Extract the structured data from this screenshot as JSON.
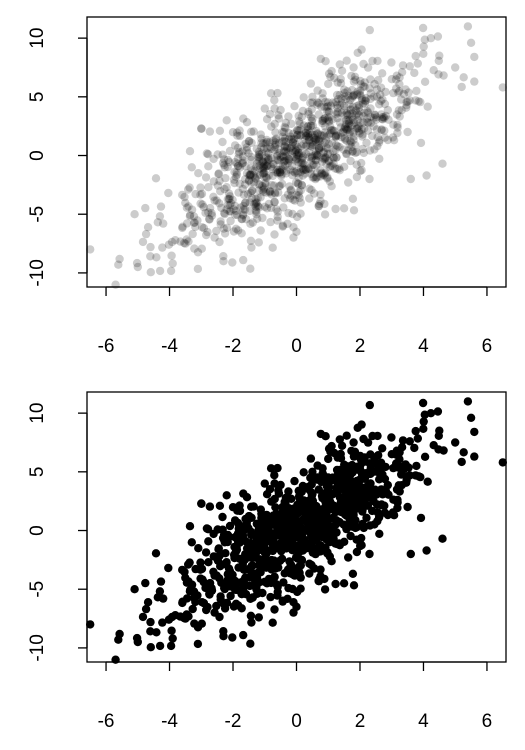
{
  "chart_data": [
    {
      "type": "scatter",
      "title": "",
      "xlabel": "",
      "ylabel": "",
      "xlim": [
        -6.6,
        6.6
      ],
      "ylim": [
        -11.2,
        11.8
      ],
      "xticks": [
        -6,
        -4,
        -2,
        0,
        2,
        4,
        6
      ],
      "yticks": [
        -10,
        -5,
        0,
        5,
        10
      ],
      "xtick_labels": [
        "-6",
        "-4",
        "-2",
        "0",
        "2",
        "4",
        "6"
      ],
      "ytick_labels": [
        "-10",
        "-5",
        "0",
        "5",
        "10"
      ],
      "grid": false,
      "marker": "filled circle",
      "point_color": "#000000",
      "point_alpha": 0.2,
      "n_points": 1000,
      "correlation": 0.75,
      "series": [
        {
          "label_points": [
            {
              "x": -6.5,
              "y": -8.0
            },
            {
              "x": -5.7,
              "y": -11.0
            },
            {
              "x": -5.1,
              "y": -5.0
            },
            {
              "x": -5.0,
              "y": -9.5
            },
            {
              "x": -4.6,
              "y": -7.8
            },
            {
              "x": -4.2,
              "y": -5.8
            },
            {
              "x": -3.9,
              "y": -9.2
            },
            {
              "x": -3.5,
              "y": -7.5
            },
            {
              "x": -3.3,
              "y": -1.0
            },
            {
              "x": -3.0,
              "y": 2.3
            },
            {
              "x": -2.3,
              "y": -9.0
            },
            {
              "x": -2.2,
              "y": 3.0
            },
            {
              "x": -1.0,
              "y": 4.0
            },
            {
              "x": -0.8,
              "y": 5.3
            },
            {
              "x": 0.0,
              "y": -6.5
            },
            {
              "x": 0.5,
              "y": 5.0
            },
            {
              "x": 1.0,
              "y": 6.1
            },
            {
              "x": 1.5,
              "y": -4.5
            },
            {
              "x": 1.8,
              "y": 7.5
            },
            {
              "x": 2.3,
              "y": -2.0
            },
            {
              "x": 2.7,
              "y": 7.0
            },
            {
              "x": 3.5,
              "y": 2.0
            },
            {
              "x": 3.6,
              "y": -2.0
            },
            {
              "x": 4.1,
              "y": -1.7
            },
            {
              "x": 4.5,
              "y": 8.5
            },
            {
              "x": 4.6,
              "y": -0.7
            },
            {
              "x": 5.0,
              "y": 7.5
            },
            {
              "x": 5.4,
              "y": 11.0
            },
            {
              "x": 5.5,
              "y": 9.6
            },
            {
              "x": 5.6,
              "y": 8.4
            },
            {
              "x": 5.6,
              "y": 6.3
            },
            {
              "x": 6.5,
              "y": 5.8
            }
          ]
        }
      ]
    },
    {
      "type": "scatter",
      "title": "",
      "xlabel": "",
      "ylabel": "",
      "xlim": [
        -6.6,
        6.6
      ],
      "ylim": [
        -11.2,
        11.8
      ],
      "xticks": [
        -6,
        -4,
        -2,
        0,
        2,
        4,
        6
      ],
      "yticks": [
        -10,
        -5,
        0,
        5,
        10
      ],
      "xtick_labels": [
        "-6",
        "-4",
        "-2",
        "0",
        "2",
        "4",
        "6"
      ],
      "ytick_labels": [
        "-10",
        "-5",
        "0",
        "5",
        "10"
      ],
      "grid": false,
      "marker": "filled circle",
      "point_color": "#000000",
      "point_alpha": 1.0,
      "n_points": 1000,
      "correlation": 0.75,
      "series": [
        {
          "label_points": [
            {
              "x": -6.5,
              "y": -8.0
            },
            {
              "x": -5.7,
              "y": -11.0
            },
            {
              "x": -5.1,
              "y": -5.0
            },
            {
              "x": -5.0,
              "y": -9.5
            },
            {
              "x": -4.6,
              "y": -7.8
            },
            {
              "x": -4.2,
              "y": -5.8
            },
            {
              "x": -3.9,
              "y": -9.2
            },
            {
              "x": -3.5,
              "y": -7.5
            },
            {
              "x": -3.3,
              "y": -1.0
            },
            {
              "x": -3.0,
              "y": 2.3
            },
            {
              "x": -2.3,
              "y": -9.0
            },
            {
              "x": -2.2,
              "y": 3.0
            },
            {
              "x": -1.0,
              "y": 4.0
            },
            {
              "x": -0.8,
              "y": 5.3
            },
            {
              "x": 0.0,
              "y": -6.5
            },
            {
              "x": 0.5,
              "y": 5.0
            },
            {
              "x": 1.0,
              "y": 6.1
            },
            {
              "x": 1.5,
              "y": -4.5
            },
            {
              "x": 1.8,
              "y": 7.5
            },
            {
              "x": 2.3,
              "y": -2.0
            },
            {
              "x": 2.7,
              "y": 7.0
            },
            {
              "x": 3.5,
              "y": 2.0
            },
            {
              "x": 3.6,
              "y": -2.0
            },
            {
              "x": 4.1,
              "y": -1.7
            },
            {
              "x": 4.5,
              "y": 8.5
            },
            {
              "x": 4.6,
              "y": -0.7
            },
            {
              "x": 5.0,
              "y": 7.5
            },
            {
              "x": 5.4,
              "y": 11.0
            },
            {
              "x": 5.5,
              "y": 9.6
            },
            {
              "x": 5.6,
              "y": 8.4
            },
            {
              "x": 5.6,
              "y": 6.3
            },
            {
              "x": 6.5,
              "y": 5.8
            }
          ]
        }
      ]
    }
  ]
}
